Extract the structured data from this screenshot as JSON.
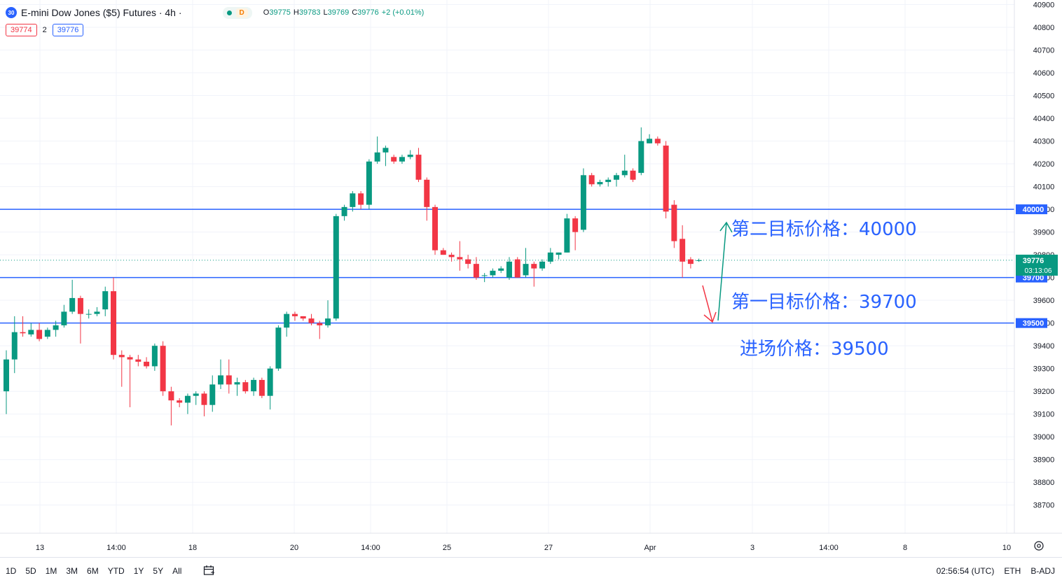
{
  "header": {
    "symbol_badge": "30",
    "title": "E-mini Dow Jones ($5) Futures · 4h ·",
    "delay_badge": "D",
    "ohlc": {
      "o_label": "O",
      "o": "39775",
      "h_label": "H",
      "h": "39783",
      "l_label": "L",
      "l": "39769",
      "c_label": "C",
      "c": "39776",
      "change": "+2 (+0.01%)"
    }
  },
  "quote": {
    "sell": "39774",
    "spread": "2",
    "buy": "39776"
  },
  "price_axis": {
    "ticks": [
      "40900",
      "40800",
      "40700",
      "40600",
      "40500",
      "40400",
      "40300",
      "40200",
      "40100",
      "40000",
      "39900",
      "39800",
      "39700",
      "39600",
      "39500",
      "39400",
      "39300",
      "39200",
      "39100",
      "39000",
      "38900",
      "38800",
      "38700"
    ],
    "last_price_label": "39776",
    "countdown": "03:13:06",
    "line_labels": [
      "40000",
      "39700",
      "39500"
    ]
  },
  "time_axis": {
    "ticks": [
      "13",
      "14:00",
      "18",
      "20",
      "14:00",
      "25",
      "27",
      "Apr",
      "3",
      "14:00",
      "8",
      "10"
    ]
  },
  "annotations": {
    "target2": "第二目标价格：40000",
    "target1": "第一目标价格：39700",
    "entry": "进场价格：39500"
  },
  "bottom_bar": {
    "ranges": [
      "1D",
      "5D",
      "1M",
      "3M",
      "6M",
      "YTD",
      "1Y",
      "5Y",
      "All"
    ],
    "clock": "02:56:54 (UTC)",
    "session": "ETH",
    "adjust": "B-ADJ"
  },
  "colors": {
    "up": "#089981",
    "down": "#f23645",
    "line": "#2962ff",
    "annotation": "#2962ff"
  },
  "chart_data": {
    "type": "candlestick",
    "x_axis": "time (4h bars, March–April)",
    "y_range": [
      38650,
      40920
    ],
    "horizontal_lines": [
      40000,
      39700,
      39500
    ],
    "last_price": 39776,
    "candles": [
      [
        39200,
        39340,
        39100,
        39380
      ],
      [
        39340,
        39460,
        39280,
        39530
      ],
      [
        39460,
        39455,
        39440,
        39530
      ],
      [
        39450,
        39470,
        39440,
        39500
      ],
      [
        39470,
        39430,
        39420,
        39500
      ],
      [
        39440,
        39470,
        39430,
        39480
      ],
      [
        39470,
        39490,
        39440,
        39510
      ],
      [
        39490,
        39550,
        39480,
        39580
      ],
      [
        39550,
        39610,
        39540,
        39690
      ],
      [
        39610,
        39540,
        39410,
        39620
      ],
      [
        39540,
        39540,
        39520,
        39560
      ],
      [
        39540,
        39550,
        39530,
        39570
      ],
      [
        39560,
        39640,
        39530,
        39660
      ],
      [
        39640,
        39360,
        39340,
        39700
      ],
      [
        39360,
        39350,
        39220,
        39380
      ],
      [
        39350,
        39340,
        39130,
        39360
      ],
      [
        39340,
        39330,
        39310,
        39360
      ],
      [
        39330,
        39310,
        39300,
        39350
      ],
      [
        39310,
        39400,
        39290,
        39410
      ],
      [
        39400,
        39200,
        39180,
        39420
      ],
      [
        39200,
        39160,
        39050,
        39220
      ],
      [
        39160,
        39150,
        39130,
        39170
      ],
      [
        39150,
        39180,
        39100,
        39190
      ],
      [
        39180,
        39190,
        39140,
        39200
      ],
      [
        39190,
        39140,
        39090,
        39200
      ],
      [
        39140,
        39230,
        39110,
        39270
      ],
      [
        39230,
        39270,
        39210,
        39340
      ],
      [
        39270,
        39230,
        39190,
        39340
      ],
      [
        39230,
        39240,
        39180,
        39260
      ],
      [
        39240,
        39200,
        39190,
        39250
      ],
      [
        39200,
        39250,
        39180,
        39260
      ],
      [
        39250,
        39180,
        39170,
        39260
      ],
      [
        39180,
        39300,
        39120,
        39310
      ],
      [
        39300,
        39480,
        39290,
        39490
      ],
      [
        39480,
        39540,
        39440,
        39550
      ],
      [
        39540,
        39530,
        39510,
        39550
      ],
      [
        39530,
        39520,
        39510,
        39530
      ],
      [
        39520,
        39500,
        39490,
        39540
      ],
      [
        39500,
        39490,
        39430,
        39510
      ],
      [
        39490,
        39520,
        39480,
        39600
      ],
      [
        39520,
        39970,
        39510,
        39980
      ],
      [
        39970,
        40010,
        39950,
        40020
      ],
      [
        40010,
        40070,
        39990,
        40080
      ],
      [
        40070,
        40020,
        40000,
        40080
      ],
      [
        40020,
        40210,
        40000,
        40220
      ],
      [
        40210,
        40250,
        40200,
        40320
      ],
      [
        40250,
        40270,
        40190,
        40280
      ],
      [
        40230,
        40210,
        40200,
        40240
      ],
      [
        40210,
        40230,
        40200,
        40240
      ],
      [
        40230,
        40240,
        40220,
        40260
      ],
      [
        40240,
        40130,
        40120,
        40270
      ],
      [
        40130,
        40010,
        39950,
        40140
      ],
      [
        40010,
        39820,
        39800,
        40020
      ],
      [
        39820,
        39800,
        39800,
        39830
      ],
      [
        39800,
        39790,
        39770,
        39810
      ],
      [
        39790,
        39780,
        39730,
        39860
      ],
      [
        39780,
        39760,
        39740,
        39800
      ],
      [
        39760,
        39700,
        39690,
        39790
      ],
      [
        39710,
        39710,
        39680,
        39720
      ],
      [
        39710,
        39730,
        39700,
        39740
      ],
      [
        39730,
        39740,
        39720,
        39750
      ],
      [
        39700,
        39770,
        39690,
        39790
      ],
      [
        39780,
        39700,
        39700,
        39790
      ],
      [
        39710,
        39760,
        39700,
        39830
      ],
      [
        39760,
        39740,
        39660,
        39770
      ],
      [
        39740,
        39770,
        39730,
        39780
      ],
      [
        39770,
        39810,
        39760,
        39830
      ],
      [
        39800,
        39810,
        39780,
        39810
      ],
      [
        39810,
        39960,
        39810,
        39980
      ],
      [
        39960,
        39900,
        39820,
        39970
      ],
      [
        39910,
        40150,
        39900,
        40180
      ],
      [
        40150,
        40110,
        40100,
        40160
      ],
      [
        40110,
        40120,
        40100,
        40130
      ],
      [
        40120,
        40130,
        40100,
        40140
      ],
      [
        40130,
        40150,
        40100,
        40160
      ],
      [
        40150,
        40170,
        40140,
        40240
      ],
      [
        40170,
        40130,
        40120,
        40180
      ],
      [
        40160,
        40300,
        40150,
        40360
      ],
      [
        40290,
        40310,
        40290,
        40330
      ],
      [
        40310,
        40290,
        40280,
        40320
      ],
      [
        40280,
        39990,
        39960,
        40300
      ],
      [
        40020,
        39860,
        39830,
        40040
      ],
      [
        39870,
        39770,
        39700,
        39930
      ],
      [
        39780,
        39760,
        39740,
        39790
      ],
      [
        39775,
        39776,
        39769,
        39783
      ]
    ]
  }
}
